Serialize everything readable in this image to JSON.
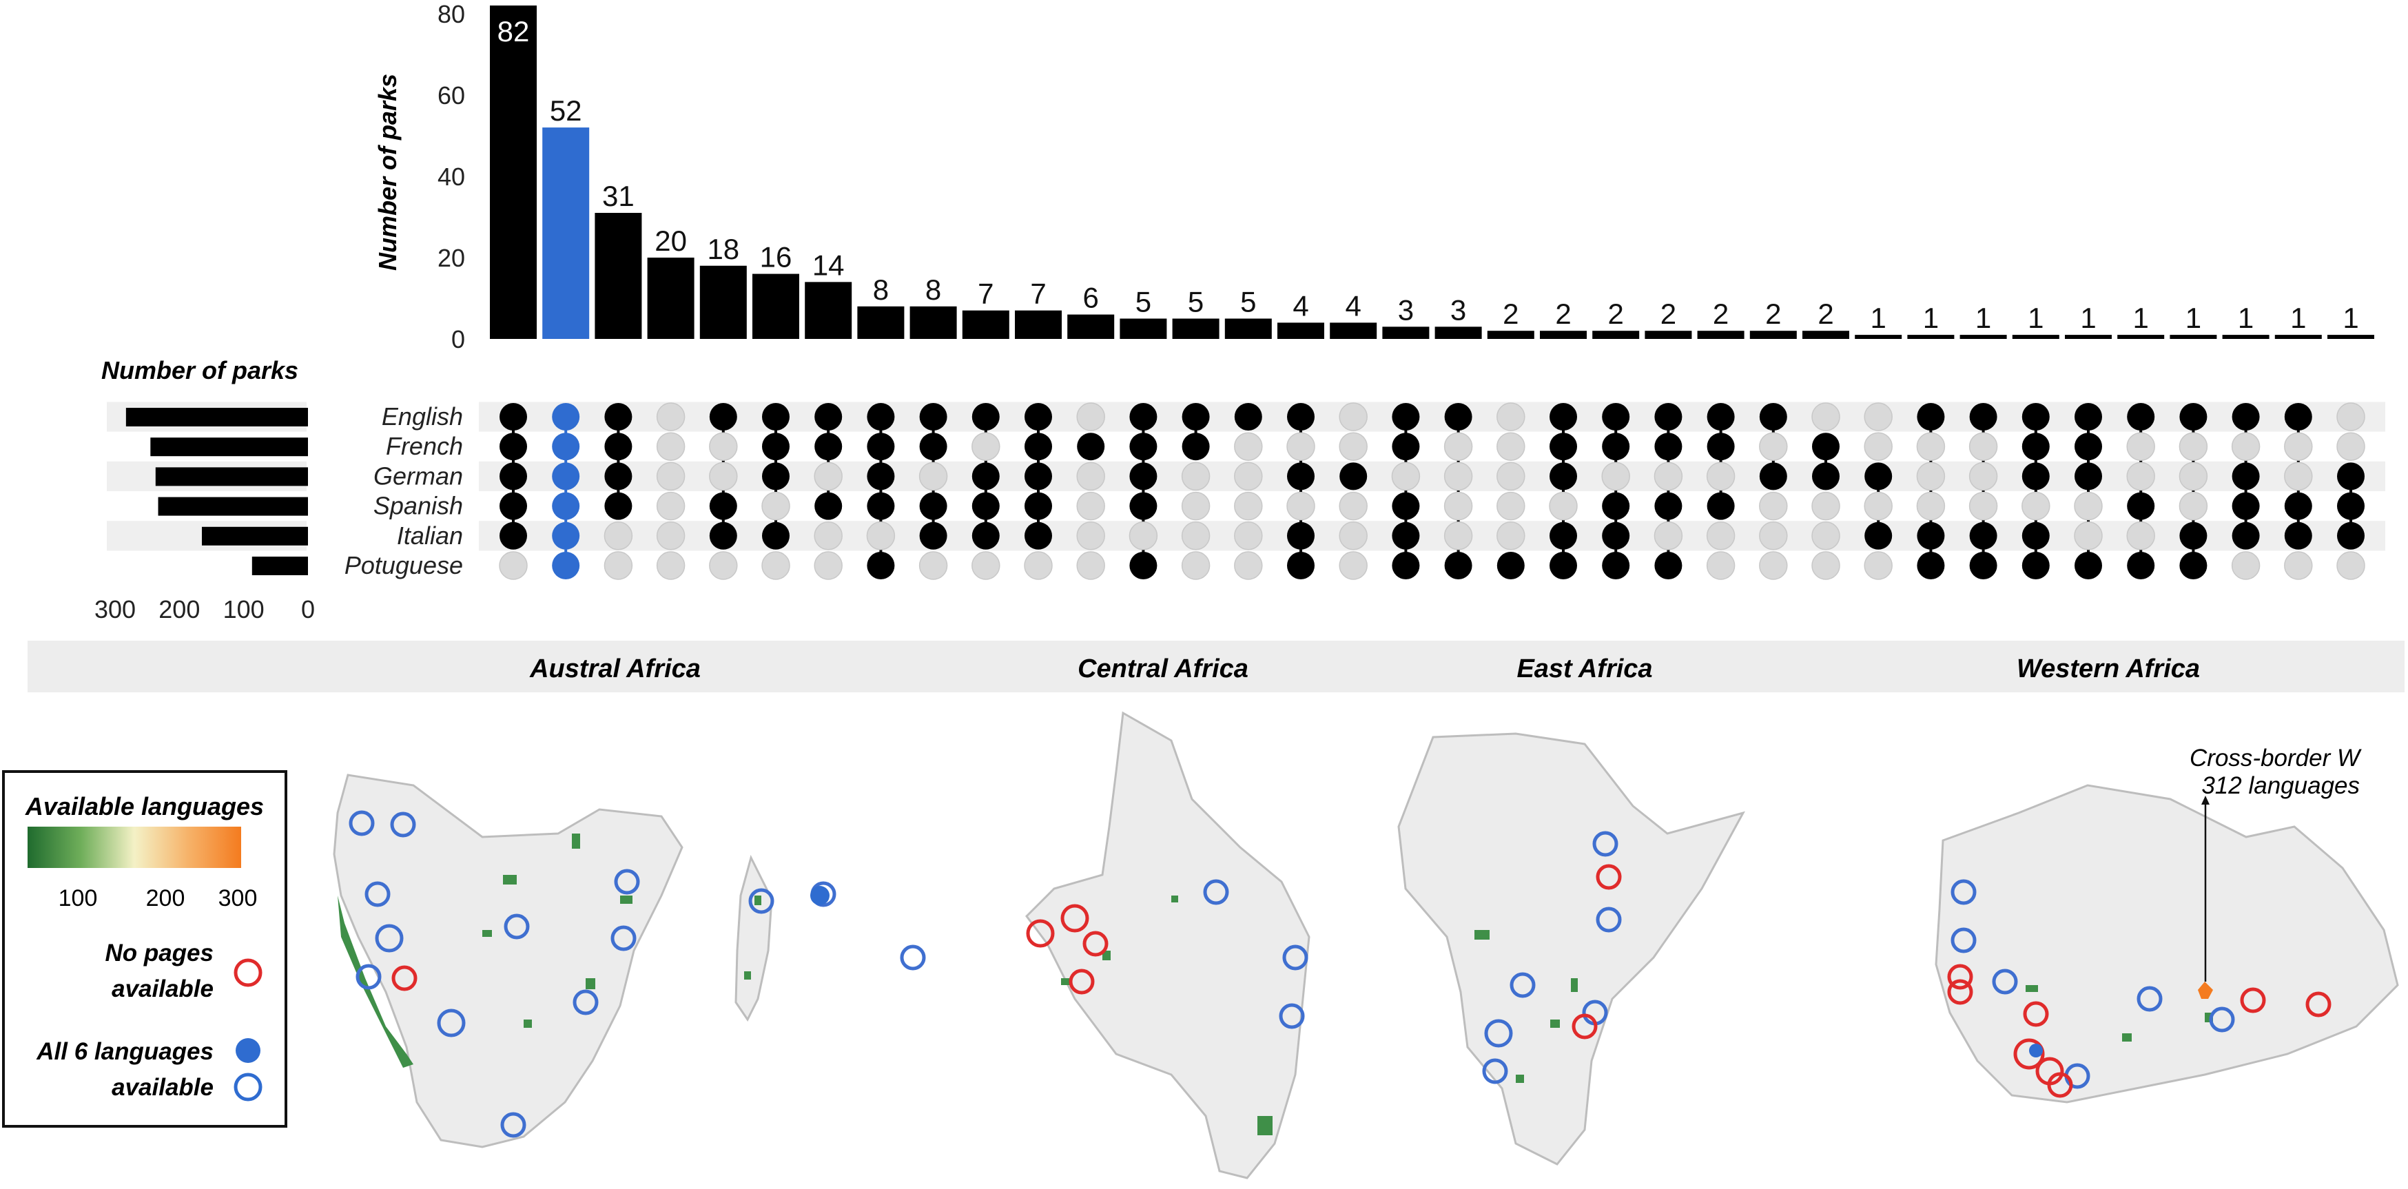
{
  "chart_data": {
    "type": "bar",
    "upset": {
      "ylabel": "Number of parks",
      "y_ticks": [
        0,
        20,
        40,
        60,
        80
      ],
      "ylim": [
        0,
        82
      ],
      "set_label": "Number of parks",
      "set_ticks": [
        "300",
        "200",
        "100",
        "0"
      ],
      "languages": [
        "English",
        "French",
        "German",
        "Spanish",
        "Italian",
        "Potuguese"
      ],
      "language_keys": [
        "En",
        "Fr",
        "De",
        "Es",
        "It",
        "Pt"
      ],
      "set_sizes": [
        283,
        245,
        237,
        233,
        165,
        87
      ],
      "highlight_index": 1,
      "highlight_color": "#2f6cd0",
      "bar_color": "#000000",
      "inactive_dot_color": "#d9d9d9",
      "intersections": [
        {
          "value": 82,
          "label": "82",
          "sets": "En Fr De Es It"
        },
        {
          "value": 52,
          "label": "52",
          "sets": "En Fr De Es It Pt"
        },
        {
          "value": 31,
          "label": "31",
          "sets": "En Fr De Es"
        },
        {
          "value": 20,
          "label": "20",
          "sets": ""
        },
        {
          "value": 18,
          "label": "18",
          "sets": "En Es It"
        },
        {
          "value": 16,
          "label": "16",
          "sets": "En Fr De It"
        },
        {
          "value": 14,
          "label": "14",
          "sets": "En Fr Es"
        },
        {
          "value": 8,
          "label": "8",
          "sets": "En Fr De Es Pt"
        },
        {
          "value": 8,
          "label": "8",
          "sets": "En Fr Es It"
        },
        {
          "value": 7,
          "label": "7",
          "sets": "En De Es It"
        },
        {
          "value": 7,
          "label": "7",
          "sets": "En Fr De Es It"
        },
        {
          "value": 6,
          "label": "6",
          "sets": "Fr"
        },
        {
          "value": 5,
          "label": "5",
          "sets": "En Fr De Es Pt"
        },
        {
          "value": 5,
          "label": "5",
          "sets": "En Fr"
        },
        {
          "value": 5,
          "label": "5",
          "sets": "En"
        },
        {
          "value": 4,
          "label": "4",
          "sets": "En De It Pt"
        },
        {
          "value": 4,
          "label": "4",
          "sets": "De"
        },
        {
          "value": 3,
          "label": "3",
          "sets": "En Fr Es It Pt"
        },
        {
          "value": 3,
          "label": "3",
          "sets": "En Pt"
        },
        {
          "value": 2,
          "label": "2",
          "sets": "Pt"
        },
        {
          "value": 2,
          "label": "2",
          "sets": "En Fr De It Pt"
        },
        {
          "value": 2,
          "label": "2",
          "sets": "En Fr Es It Pt"
        },
        {
          "value": 2,
          "label": "2",
          "sets": "En Fr Es Pt"
        },
        {
          "value": 2,
          "label": "2",
          "sets": "En Fr Es"
        },
        {
          "value": 2,
          "label": "2",
          "sets": "En De"
        },
        {
          "value": 2,
          "label": "2",
          "sets": "Fr De"
        },
        {
          "value": 1,
          "label": "1",
          "sets": "De It"
        },
        {
          "value": 1,
          "label": "1",
          "sets": "En It Pt"
        },
        {
          "value": 1,
          "label": "1",
          "sets": "En It Pt"
        },
        {
          "value": 1,
          "label": "1",
          "sets": "En Fr De It Pt"
        },
        {
          "value": 1,
          "label": "1",
          "sets": "En Fr De Pt"
        },
        {
          "value": 1,
          "label": "1",
          "sets": "En Es Pt"
        },
        {
          "value": 1,
          "label": "1",
          "sets": "En It Pt"
        },
        {
          "value": 1,
          "label": "1",
          "sets": "En De Es It"
        },
        {
          "value": 1,
          "label": "1",
          "sets": "En Es It"
        },
        {
          "value": 1,
          "label": "1",
          "sets": "De Es It"
        }
      ]
    },
    "regions": [
      "Austral Africa",
      "Central Africa",
      "East Africa",
      "Western Africa"
    ],
    "annotation": {
      "line1": "Cross-border W",
      "line2": "312 languages"
    },
    "legend": {
      "title": "Available languages",
      "colorbar_ticks": [
        "100",
        "200",
        "300"
      ],
      "colorbar_colors": [
        "#1f6b2e",
        "#6fae5a",
        "#f4f1c6",
        "#f6b36a",
        "#f47b1f"
      ],
      "no_pages_line1": "No pages",
      "no_pages_line2": "available",
      "no_pages_color": "#e02b2b",
      "all6_line1": "All 6 languages",
      "all6_line2": "available",
      "all6_color": "#2f6cd0"
    },
    "map_colors": {
      "land": "#ececec",
      "border": "#bdbdbd",
      "park": "#3f8f48"
    }
  }
}
